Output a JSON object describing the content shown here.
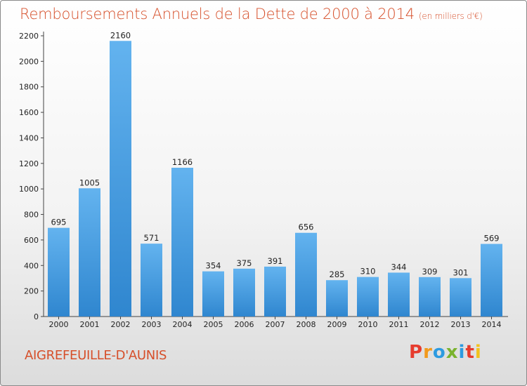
{
  "title": "Remboursements Annuels de la Dette de 2000 à 2014",
  "unit_note": "(en milliers d'€)",
  "commune": "AIGREFEUILLE-D'AUNIS",
  "logo": {
    "letters": [
      "P",
      "r",
      "o",
      "x",
      "i",
      "t",
      "i"
    ],
    "colors": [
      "#e63c2e",
      "#f29a1c",
      "#2d9be0",
      "#7ab32e",
      "#2d9be0",
      "#e63c2e",
      "#f2c21c"
    ]
  },
  "colors": {
    "bar": "#3f97dc",
    "bar_light": "#6fb9f0",
    "title": "#d64f2a"
  },
  "chart_data": {
    "type": "bar",
    "title": "Remboursements Annuels de la Dette de 2000 à 2014",
    "categories": [
      "2000",
      "2001",
      "2002",
      "2003",
      "2004",
      "2005",
      "2006",
      "2007",
      "2008",
      "2009",
      "2010",
      "2011",
      "2012",
      "2013",
      "2014"
    ],
    "values": [
      695,
      1005,
      2160,
      571,
      1166,
      354,
      375,
      391,
      656,
      285,
      310,
      344,
      309,
      301,
      569
    ],
    "ylim": [
      0,
      2200
    ],
    "yticks": [
      0,
      200,
      400,
      600,
      800,
      1000,
      1200,
      1400,
      1600,
      1800,
      2000,
      2200
    ],
    "grid": false
  }
}
